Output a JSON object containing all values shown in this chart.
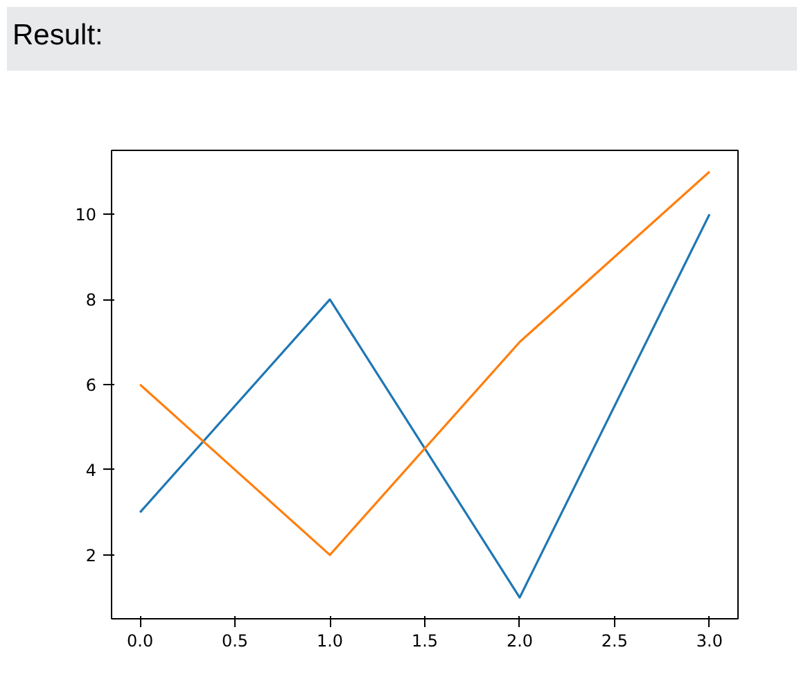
{
  "chart_data": {
    "type": "line",
    "title": "Result:",
    "x": [
      0,
      1,
      2,
      3
    ],
    "series": [
      {
        "color": "#1f77b4",
        "values": [
          3,
          8,
          1,
          10
        ]
      },
      {
        "color": "#ff7f0e",
        "values": [
          6,
          2,
          7,
          11
        ]
      }
    ],
    "xlim": [
      -0.15,
      3.15
    ],
    "ylim": [
      0.5,
      11.5
    ],
    "xticks": [
      {
        "value": 0,
        "label": "0.0"
      },
      {
        "value": 0.5,
        "label": "0.5"
      },
      {
        "value": 1,
        "label": "1.0"
      },
      {
        "value": 1.5,
        "label": "1.5"
      },
      {
        "value": 2,
        "label": "2.0"
      },
      {
        "value": 2.5,
        "label": "2.5"
      },
      {
        "value": 3,
        "label": "3.0"
      }
    ],
    "yticks": [
      2,
      4,
      6,
      8,
      10
    ],
    "grid": false,
    "marker": "none",
    "line_style": "solid"
  }
}
